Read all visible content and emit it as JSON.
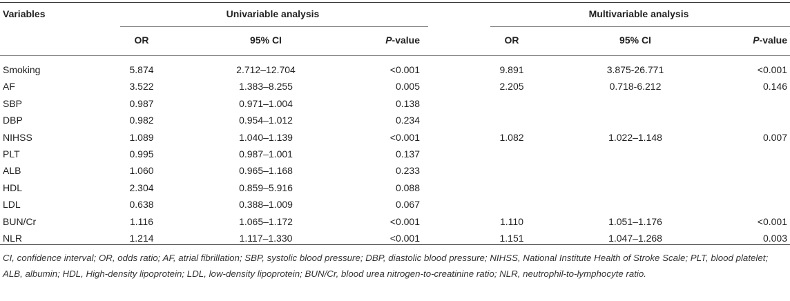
{
  "table": {
    "header": {
      "variables": "Variables",
      "univariable": "Univariable analysis",
      "multivariable": "Multivariable analysis",
      "or": "OR",
      "ci": "95% CI",
      "p_italic": "P",
      "p_rest": "-value"
    },
    "rows": [
      {
        "variable": "Smoking",
        "uni_or": "5.874",
        "uni_ci": "2.712–12.704",
        "uni_p": "<0.001",
        "multi_or": "9.891",
        "multi_ci": "3.875-26.771",
        "multi_p": "<0.001"
      },
      {
        "variable": "AF",
        "uni_or": "3.522",
        "uni_ci": "1.383–8.255",
        "uni_p": "0.005",
        "multi_or": "2.205",
        "multi_ci": "0.718-6.212",
        "multi_p": "0.146"
      },
      {
        "variable": "SBP",
        "uni_or": "0.987",
        "uni_ci": "0.971–1.004",
        "uni_p": "0.138",
        "multi_or": "",
        "multi_ci": "",
        "multi_p": ""
      },
      {
        "variable": "DBP",
        "uni_or": "0.982",
        "uni_ci": "0.954–1.012",
        "uni_p": "0.234",
        "multi_or": "",
        "multi_ci": "",
        "multi_p": ""
      },
      {
        "variable": "NIHSS",
        "uni_or": "1.089",
        "uni_ci": "1.040–1.139",
        "uni_p": "<0.001",
        "multi_or": "1.082",
        "multi_ci": "1.022–1.148",
        "multi_p": "0.007"
      },
      {
        "variable": "PLT",
        "uni_or": "0.995",
        "uni_ci": "0.987–1.001",
        "uni_p": "0.137",
        "multi_or": "",
        "multi_ci": "",
        "multi_p": ""
      },
      {
        "variable": "ALB",
        "uni_or": "1.060",
        "uni_ci": "0.965–1.168",
        "uni_p": "0.233",
        "multi_or": "",
        "multi_ci": "",
        "multi_p": ""
      },
      {
        "variable": "HDL",
        "uni_or": "2.304",
        "uni_ci": "0.859–5.916",
        "uni_p": "0.088",
        "multi_or": "",
        "multi_ci": "",
        "multi_p": ""
      },
      {
        "variable": "LDL",
        "uni_or": "0.638",
        "uni_ci": "0.388–1.009",
        "uni_p": "0.067",
        "multi_or": "",
        "multi_ci": "",
        "multi_p": ""
      },
      {
        "variable": "BUN/Cr",
        "uni_or": "1.116",
        "uni_ci": "1.065–1.172",
        "uni_p": "<0.001",
        "multi_or": "1.110",
        "multi_ci": "1.051–1.176",
        "multi_p": "<0.001"
      },
      {
        "variable": "NLR",
        "uni_or": "1.214",
        "uni_ci": "1.117–1.330",
        "uni_p": "<0.001",
        "multi_or": "1.151",
        "multi_ci": "1.047–1.268",
        "multi_p": "0.003"
      }
    ],
    "footnote": "CI, confidence interval; OR, odds ratio; AF, atrial fibrillation; SBP, systolic blood pressure; DBP, diastolic blood pressure; NIHSS, National Institute Health of Stroke Scale; PLT, blood platelet; ALB, albumin; HDL, High-density lipoprotein; LDL, low-density lipoprotein; BUN/Cr, blood urea nitrogen-to-creatinine ratio; NLR, neutrophil-to-lymphocyte ratio."
  }
}
